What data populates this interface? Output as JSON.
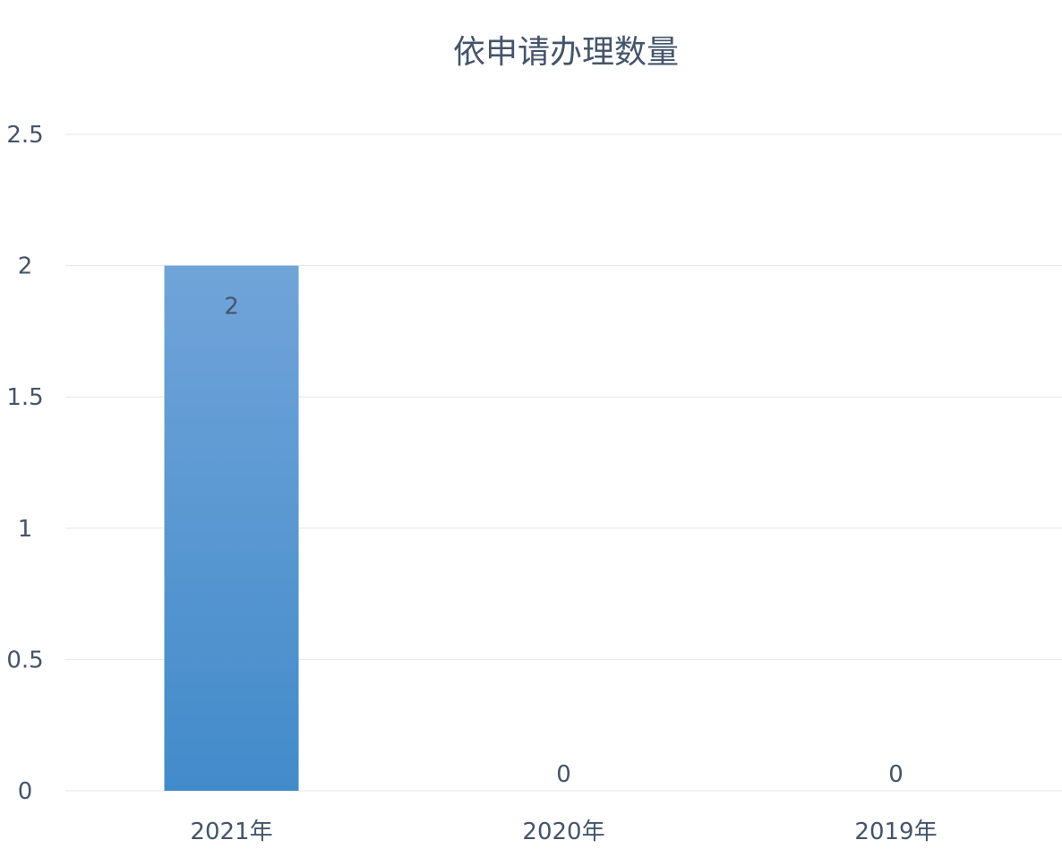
{
  "chart_data": {
    "type": "bar",
    "title": "依申请办理数量",
    "categories": [
      "2021年",
      "2020年",
      "2019年"
    ],
    "values": [
      2,
      0,
      0
    ],
    "data_labels": [
      "2",
      "0",
      "0"
    ],
    "ylim": [
      0,
      2.5
    ],
    "yticks": [
      "0",
      "0.5",
      "1",
      "1.5",
      "2",
      "2.5"
    ],
    "xlabel": "",
    "ylabel": "",
    "grid": true,
    "legend": "none",
    "colors": {
      "bar_top": "#70a4d9",
      "bar_bottom": "#428bca",
      "text": "#44546a",
      "grid": "#e6e6e6"
    }
  }
}
